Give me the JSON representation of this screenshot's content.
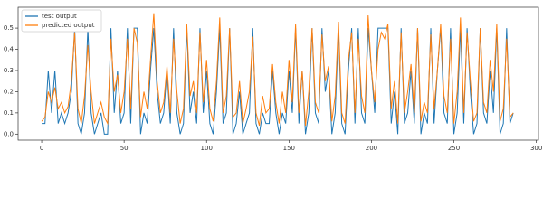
{
  "chart_data": {
    "type": "line",
    "x": [
      0,
      2,
      4,
      6,
      8,
      10,
      12,
      14,
      16,
      18,
      20,
      22,
      24,
      26,
      28,
      30,
      32,
      34,
      36,
      38,
      40,
      42,
      44,
      46,
      48,
      50,
      52,
      54,
      56,
      58,
      60,
      62,
      64,
      66,
      68,
      70,
      72,
      74,
      76,
      78,
      80,
      82,
      84,
      86,
      88,
      90,
      92,
      94,
      96,
      98,
      100,
      102,
      104,
      106,
      108,
      110,
      112,
      114,
      116,
      118,
      120,
      122,
      124,
      126,
      128,
      130,
      132,
      134,
      136,
      138,
      140,
      142,
      144,
      146,
      148,
      150,
      152,
      154,
      156,
      158,
      160,
      162,
      164,
      166,
      168,
      170,
      172,
      174,
      176,
      178,
      180,
      182,
      184,
      186,
      188,
      190,
      192,
      194,
      196,
      198,
      200,
      202,
      204,
      206,
      208,
      210,
      212,
      214,
      216,
      218,
      220,
      222,
      224,
      226,
      228,
      230,
      232,
      234,
      236,
      238,
      240,
      242,
      244,
      246,
      248,
      250,
      252,
      254,
      256,
      258,
      260,
      262,
      264,
      266,
      268,
      270,
      272,
      274,
      276,
      278,
      280,
      282,
      284,
      286
    ],
    "series": [
      {
        "name": "test output",
        "color": "#1f77b4",
        "values": [
          0.05,
          0.05,
          0.3,
          0.1,
          0.3,
          0.05,
          0.1,
          0.05,
          0.1,
          0.2,
          0.5,
          0.05,
          0,
          0.1,
          0.5,
          0.1,
          0,
          0.05,
          0.1,
          0,
          0,
          0.5,
          0.1,
          0.3,
          0.05,
          0.1,
          0.5,
          0.05,
          0.5,
          0.5,
          0,
          0.1,
          0.05,
          0.3,
          0.5,
          0.2,
          0.05,
          0.1,
          0.3,
          0.05,
          0.5,
          0.1,
          0,
          0.05,
          0.5,
          0.1,
          0.2,
          0.05,
          0.5,
          0.1,
          0.3,
          0.05,
          0,
          0.2,
          0.5,
          0.05,
          0.1,
          0.5,
          0,
          0.05,
          0.2,
          0,
          0.05,
          0.1,
          0.5,
          0.05,
          0,
          0.1,
          0.05,
          0.05,
          0.3,
          0.1,
          0,
          0.1,
          0.05,
          0.3,
          0.1,
          0.5,
          0.05,
          0.3,
          0,
          0.1,
          0.5,
          0.1,
          0.05,
          0.5,
          0.2,
          0.3,
          0,
          0.1,
          0.5,
          0.05,
          0,
          0.3,
          0.5,
          0.05,
          0.5,
          0.1,
          0.05,
          0.5,
          0.3,
          0.1,
          0.5,
          0.5,
          0.5,
          0.5,
          0.05,
          0.2,
          0,
          0.5,
          0.05,
          0.1,
          0.3,
          0.05,
          0.5,
          0,
          0.1,
          0.05,
          0.5,
          0.05,
          0.3,
          0.5,
          0.1,
          0.05,
          0.5,
          0,
          0.1,
          0.5,
          0.05,
          0.5,
          0.2,
          0,
          0.05,
          0.5,
          0.1,
          0.05,
          0.3,
          0.1,
          0.5,
          0,
          0.05,
          0.5,
          0.05,
          0.1
        ]
      },
      {
        "name": "predicted output",
        "color": "#ff7f0e",
        "values": [
          0.06,
          0.08,
          0.2,
          0.15,
          0.22,
          0.12,
          0.15,
          0.1,
          0.13,
          0.25,
          0.48,
          0.12,
          0.05,
          0.18,
          0.42,
          0.2,
          0.05,
          0.1,
          0.15,
          0.08,
          0.05,
          0.45,
          0.2,
          0.28,
          0.1,
          0.2,
          0.45,
          0.12,
          0.5,
          0.43,
          0.08,
          0.2,
          0.12,
          0.35,
          0.57,
          0.25,
          0.1,
          0.15,
          0.32,
          0.1,
          0.45,
          0.2,
          0.05,
          0.12,
          0.52,
          0.18,
          0.25,
          0.1,
          0.48,
          0.15,
          0.35,
          0.12,
          0.06,
          0.25,
          0.55,
          0.1,
          0.18,
          0.5,
          0.08,
          0.1,
          0.25,
          0.05,
          0.12,
          0.2,
          0.46,
          0.1,
          0.04,
          0.18,
          0.1,
          0.12,
          0.33,
          0.15,
          0.05,
          0.2,
          0.1,
          0.35,
          0.15,
          0.52,
          0.1,
          0.3,
          0.04,
          0.2,
          0.5,
          0.15,
          0.1,
          0.47,
          0.25,
          0.32,
          0.06,
          0.18,
          0.53,
          0.1,
          0.05,
          0.35,
          0.48,
          0.1,
          0.45,
          0.18,
          0.1,
          0.56,
          0.3,
          0.15,
          0.4,
          0.48,
          0.45,
          0.52,
          0.12,
          0.25,
          0.05,
          0.48,
          0.1,
          0.2,
          0.33,
          0.1,
          0.5,
          0.06,
          0.15,
          0.1,
          0.47,
          0.12,
          0.3,
          0.52,
          0.18,
          0.1,
          0.45,
          0.05,
          0.2,
          0.55,
          0.1,
          0.48,
          0.25,
          0.06,
          0.1,
          0.5,
          0.15,
          0.1,
          0.35,
          0.2,
          0.52,
          0.06,
          0.12,
          0.45,
          0.08,
          0.1
        ]
      }
    ],
    "xlim": [
      -14.3,
      301.3
    ],
    "xticks": [
      0,
      50,
      100,
      150,
      200,
      250,
      300
    ],
    "ylim": [
      -0.0285,
      0.5985
    ],
    "yticks": [
      {
        "value": 0,
        "label": "0.0"
      },
      0.1,
      0.2,
      0.3,
      0.4,
      0.5
    ],
    "legend": "upper left"
  }
}
